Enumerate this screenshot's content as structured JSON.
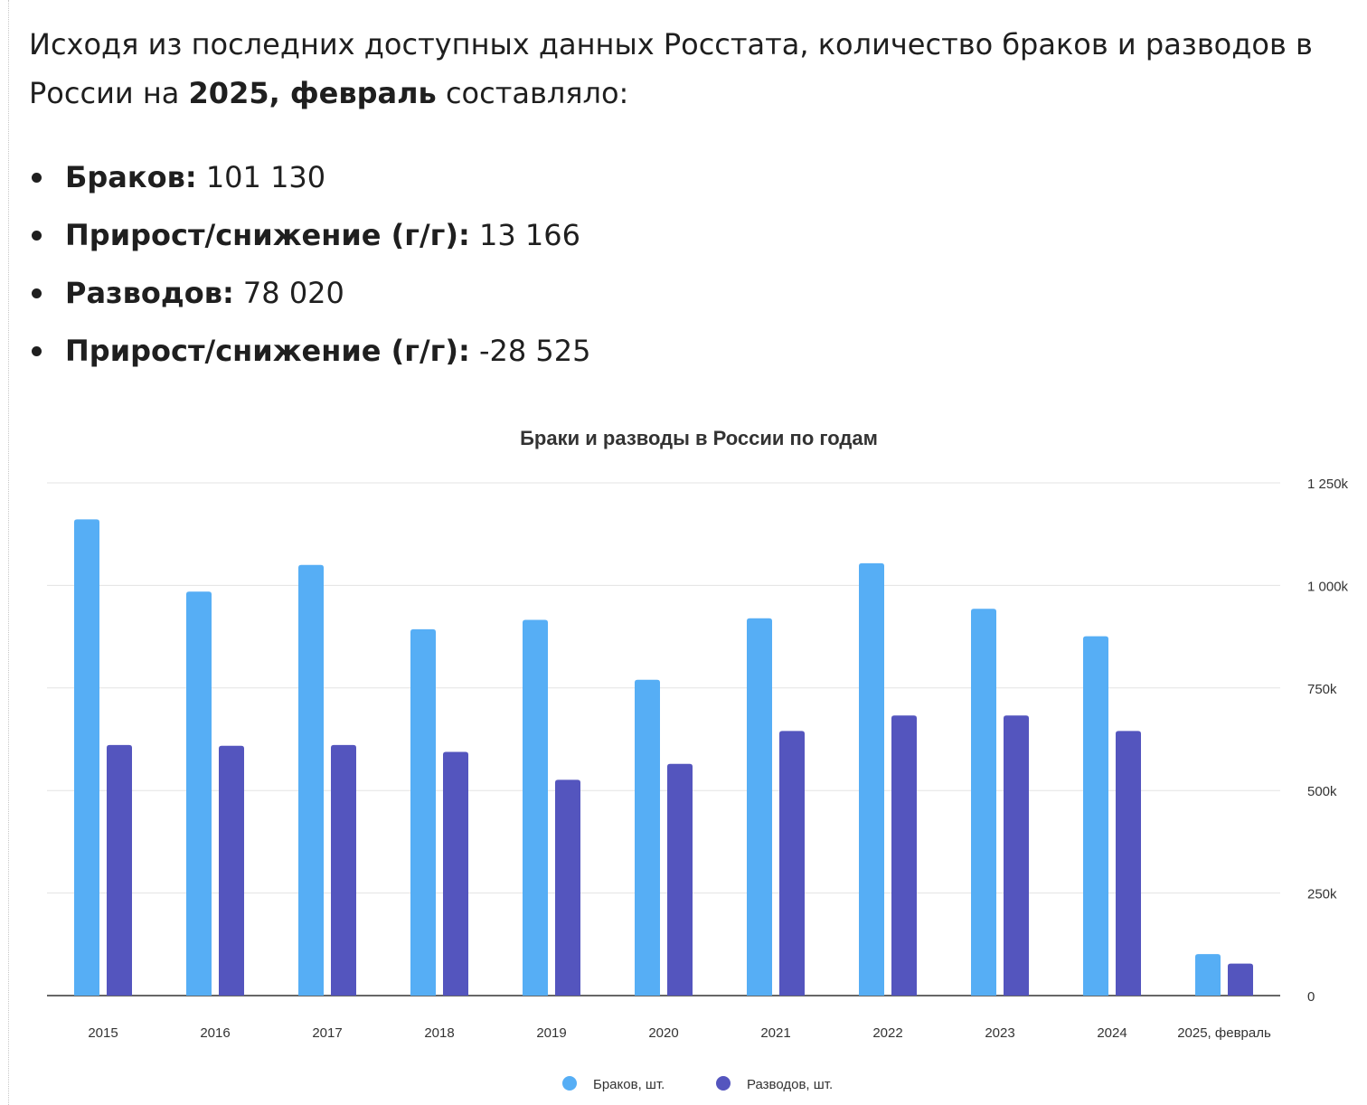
{
  "intro": {
    "text_before": "Исходя из последних доступных данных Росстата, количество браков и разводов в России на ",
    "period": "2025, февраль",
    "text_after": " составляло:"
  },
  "stats": [
    {
      "label": "Браков:",
      "value": " 101 130"
    },
    {
      "label": "Прирост/снижение (г/г):",
      "value": " 13 166"
    },
    {
      "label": "Разводов:",
      "value": " 78 020"
    },
    {
      "label": "Прирост/снижение (г/г):",
      "value": " -28 525"
    }
  ],
  "chart_data": {
    "type": "bar",
    "title": "Браки и разводы в России по годам",
    "categories": [
      "2015",
      "2016",
      "2017",
      "2018",
      "2019",
      "2020",
      "2021",
      "2022",
      "2023",
      "2024",
      "2025, февраль"
    ],
    "series": [
      {
        "name": "Браков, шт.",
        "color": "#56aef5",
        "values": [
          1161000,
          985000,
          1050000,
          893000,
          916000,
          770000,
          920000,
          1054000,
          943000,
          876000,
          101130
        ]
      },
      {
        "name": "Разводов, шт.",
        "color": "#5455be",
        "values": [
          611000,
          609000,
          611000,
          594000,
          526000,
          565000,
          645000,
          683000,
          683000,
          645000,
          78020
        ]
      }
    ],
    "ylim": [
      0,
      1250000
    ],
    "yticks": [
      0,
      250000,
      500000,
      750000,
      1000000,
      1250000
    ],
    "ytick_labels": [
      "0",
      "250k",
      "500k",
      "750k",
      "1 000k",
      "1 250k"
    ],
    "y_axis_side": "right",
    "grid": true,
    "legend_position": "bottom-center"
  }
}
